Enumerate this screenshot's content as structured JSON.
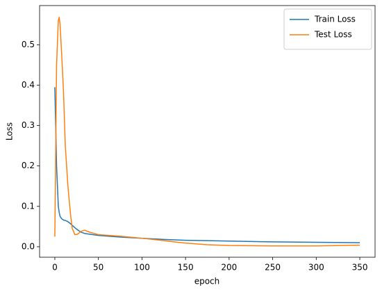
{
  "chart_data": {
    "type": "line",
    "xlabel": "epoch",
    "ylabel": "Loss",
    "x": [
      0,
      2,
      4,
      5,
      6,
      8,
      10,
      12,
      15,
      18,
      20,
      23,
      26,
      30,
      34,
      40,
      50,
      75,
      100,
      125,
      150,
      175,
      200,
      250,
      300,
      350
    ],
    "series": [
      {
        "name": "Train Loss",
        "color": "#1f77b4",
        "values": [
          0.395,
          0.2,
          0.1,
          0.085,
          0.075,
          0.069,
          0.066,
          0.065,
          0.062,
          0.057,
          0.053,
          0.047,
          0.042,
          0.036,
          0.033,
          0.031,
          0.028,
          0.024,
          0.021,
          0.018,
          0.016,
          0.015,
          0.014,
          0.012,
          0.011,
          0.01
        ]
      },
      {
        "name": "Test Loss",
        "color": "#ff7f0e",
        "values": [
          0.025,
          0.45,
          0.56,
          0.568,
          0.55,
          0.47,
          0.38,
          0.25,
          0.15,
          0.08,
          0.045,
          0.03,
          0.031,
          0.038,
          0.041,
          0.036,
          0.03,
          0.026,
          0.021,
          0.015,
          0.009,
          0.005,
          0.003,
          0.002,
          0.002,
          0.004
        ]
      }
    ],
    "xlim": [
      -17.5,
      367.5
    ],
    "ylim": [
      -0.026,
      0.597
    ],
    "xticks": [
      0,
      50,
      100,
      150,
      200,
      250,
      300,
      350
    ],
    "yticks": [
      {
        "value": 0,
        "label": "0.0"
      },
      0.1,
      0.2,
      0.3,
      0.4,
      0.5
    ],
    "legend": "upper right",
    "grid": false
  }
}
